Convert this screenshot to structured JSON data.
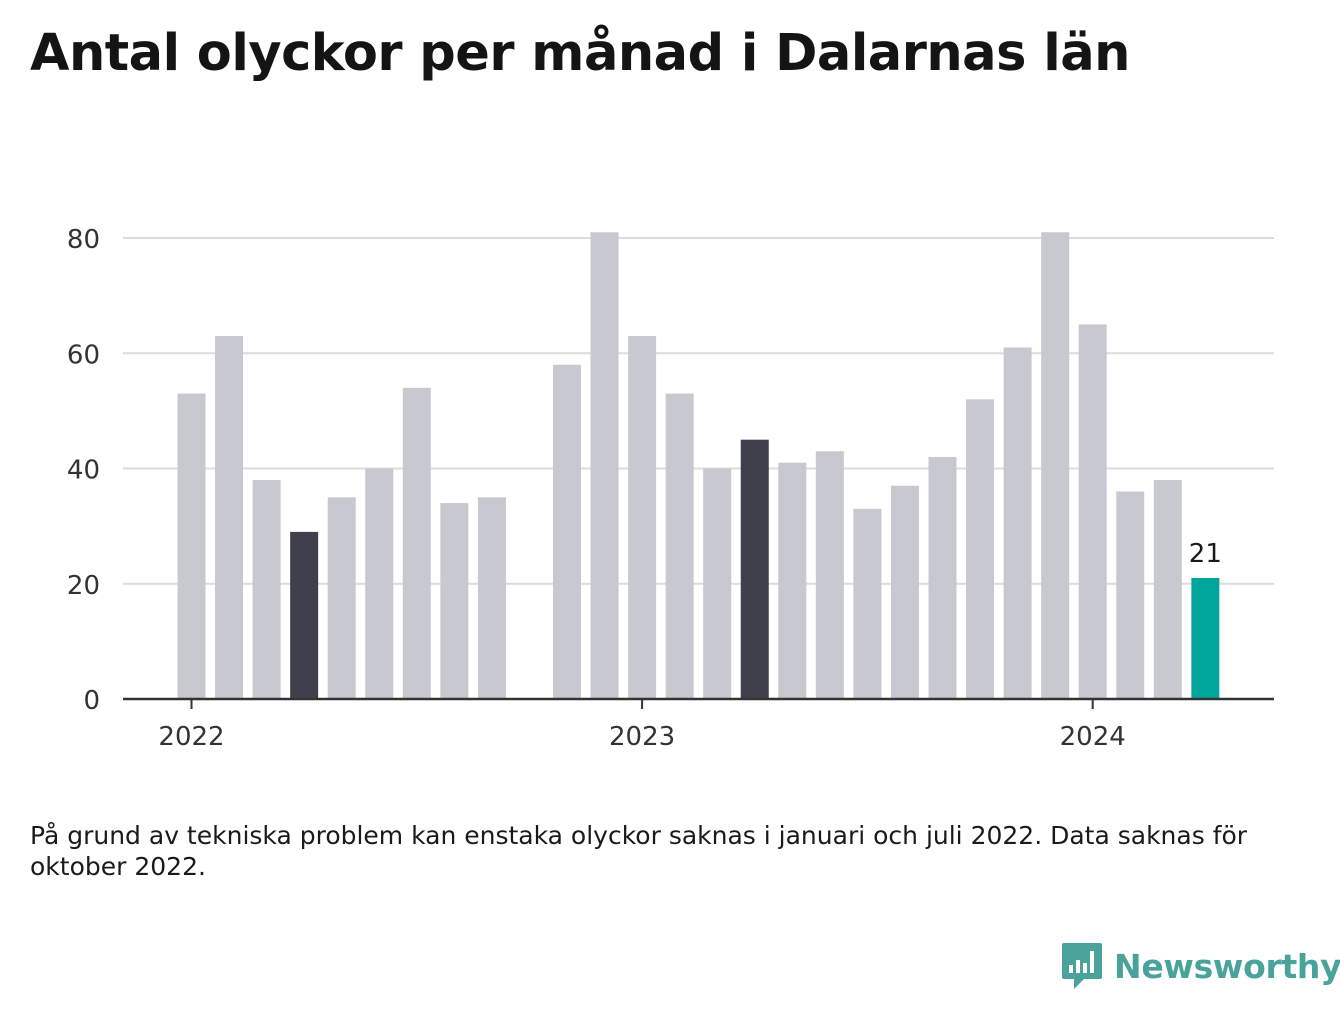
{
  "title": "Antal olyckor per månad i Dalarnas län",
  "note": "På grund av tekniska problem kan enstaka olyckor saknas i januari och juli 2022. Data saknas för oktober 2022.",
  "brand": {
    "name": "Newsworthy",
    "color": "#4aa39a"
  },
  "colors": {
    "default_bar": "#c8c8d0",
    "highlight_bar": "#403f4c",
    "current_bar": "#00a69c",
    "grid": "#dcdcdc",
    "axis": "#333333"
  },
  "chart_data": {
    "type": "bar",
    "title": "Antal olyckor per månad i Dalarnas län",
    "xlabel": "",
    "ylabel": "",
    "ylim": [
      0,
      80
    ],
    "yticks": [
      0,
      20,
      40,
      60,
      80
    ],
    "xticks": [
      {
        "label": "2022",
        "at_month": "2022-01"
      },
      {
        "label": "2023",
        "at_month": "2023-01"
      },
      {
        "label": "2024",
        "at_month": "2024-01"
      }
    ],
    "grid": true,
    "months": [
      "2022-01",
      "2022-02",
      "2022-03",
      "2022-04",
      "2022-05",
      "2022-06",
      "2022-07",
      "2022-08",
      "2022-09",
      "2022-10",
      "2022-11",
      "2022-12",
      "2023-01",
      "2023-02",
      "2023-03",
      "2023-04",
      "2023-05",
      "2023-06",
      "2023-07",
      "2023-08",
      "2023-09",
      "2023-10",
      "2023-11",
      "2023-12",
      "2024-01",
      "2024-02",
      "2024-03",
      "2024-04"
    ],
    "values": [
      53,
      63,
      38,
      29,
      35,
      40,
      54,
      34,
      35,
      null,
      58,
      81,
      63,
      53,
      40,
      45,
      41,
      43,
      33,
      37,
      42,
      52,
      61,
      81,
      65,
      36,
      38,
      21
    ],
    "highlight_months": [
      "2022-04",
      "2023-04"
    ],
    "current_month": "2024-04",
    "value_labels": [
      {
        "month": "2024-04",
        "text": "21"
      }
    ]
  }
}
